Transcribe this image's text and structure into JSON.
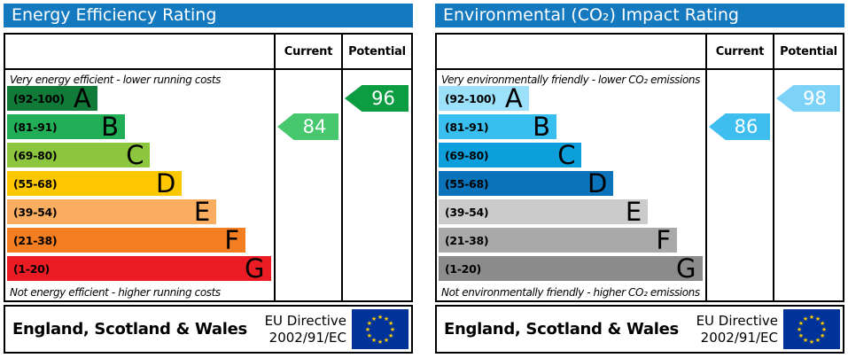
{
  "page": {
    "background": "#ffffff",
    "title_bar_color": "#1579BF",
    "border_color": "#000000",
    "eu_flag_blue": "#003399",
    "eu_flag_star_yellow": "#FFCC00"
  },
  "panels": [
    {
      "title": "Energy Efficiency Rating",
      "columns": {
        "current": "Current",
        "potential": "Potential"
      },
      "top_caption": "Very energy efficient - lower running costs",
      "bottom_caption": "Not energy efficient - higher running costs",
      "bands": [
        {
          "letter": "A",
          "range": "(92-100)",
          "color": "#117A38",
          "width_pct": 34
        },
        {
          "letter": "B",
          "range": "(81-91)",
          "color": "#21AE56",
          "width_pct": 44.5
        },
        {
          "letter": "C",
          "range": "(69-80)",
          "color": "#8CC63F",
          "width_pct": 54
        },
        {
          "letter": "D",
          "range": "(55-68)",
          "color": "#FDC800",
          "width_pct": 66
        },
        {
          "letter": "E",
          "range": "(39-54)",
          "color": "#FAAC60",
          "width_pct": 79
        },
        {
          "letter": "F",
          "range": "(21-38)",
          "color": "#F37D21",
          "width_pct": 90
        },
        {
          "letter": "G",
          "range": "(1-20)",
          "color": "#EC1C24",
          "width_pct": 99.5
        }
      ],
      "current": {
        "value": "84",
        "band_index": 1,
        "color": "#47C76E"
      },
      "potential": {
        "value": "96",
        "band_index": 0,
        "color": "#0C9C42"
      },
      "footer": {
        "region": "England, Scotland & Wales",
        "directive_line1": "EU Directive",
        "directive_line2": "2002/91/EC"
      }
    },
    {
      "title": "Environmental (CO₂) Impact Rating",
      "columns": {
        "current": "Current",
        "potential": "Potential"
      },
      "top_caption": "Very environmentally friendly - lower CO₂ emissions",
      "bottom_caption": "Not environmentally friendly - higher CO₂ emissions",
      "bands": [
        {
          "letter": "A",
          "range": "(92-100)",
          "color": "#9CE0F9",
          "width_pct": 34
        },
        {
          "letter": "B",
          "range": "(81-91)",
          "color": "#38BEEF",
          "width_pct": 44.5
        },
        {
          "letter": "C",
          "range": "(69-80)",
          "color": "#0C9FDB",
          "width_pct": 54
        },
        {
          "letter": "D",
          "range": "(55-68)",
          "color": "#0A73BA",
          "width_pct": 66
        },
        {
          "letter": "E",
          "range": "(39-54)",
          "color": "#CBCBCB",
          "width_pct": 79
        },
        {
          "letter": "F",
          "range": "(21-38)",
          "color": "#A9A9A9",
          "width_pct": 90
        },
        {
          "letter": "G",
          "range": "(1-20)",
          "color": "#8B8B8B",
          "width_pct": 99.5
        }
      ],
      "current": {
        "value": "86",
        "band_index": 1,
        "color": "#3EBEEF"
      },
      "potential": {
        "value": "98",
        "band_index": 0,
        "color": "#7DD3F7"
      },
      "footer": {
        "region": "England, Scotland & Wales",
        "directive_line1": "EU Directive",
        "directive_line2": "2002/91/EC"
      }
    }
  ],
  "chart_data": [
    {
      "type": "bar",
      "title": "Energy Efficiency Rating",
      "categories": [
        "A (92-100)",
        "B (81-91)",
        "C (69-80)",
        "D (55-68)",
        "E (39-54)",
        "F (21-38)",
        "G (1-20)"
      ],
      "values": [
        34,
        44.5,
        54,
        66,
        79,
        90,
        99.5
      ],
      "xlabel": "",
      "ylabel": "",
      "current_rating": 84,
      "current_band": "B",
      "potential_rating": 96,
      "potential_band": "A",
      "annotations": [
        "Very energy efficient - lower running costs",
        "Not energy efficient - higher running costs",
        "England, Scotland & Wales",
        "EU Directive 2002/91/EC"
      ]
    },
    {
      "type": "bar",
      "title": "Environmental (CO₂) Impact Rating",
      "categories": [
        "A (92-100)",
        "B (81-91)",
        "C (69-80)",
        "D (55-68)",
        "E (39-54)",
        "F (21-38)",
        "G (1-20)"
      ],
      "values": [
        34,
        44.5,
        54,
        66,
        79,
        90,
        99.5
      ],
      "xlabel": "",
      "ylabel": "",
      "current_rating": 86,
      "current_band": "B",
      "potential_rating": 98,
      "potential_band": "A",
      "annotations": [
        "Very environmentally friendly - lower CO₂ emissions",
        "Not environmentally friendly - higher CO₂ emissions",
        "England, Scotland & Wales",
        "EU Directive 2002/91/EC"
      ]
    }
  ]
}
